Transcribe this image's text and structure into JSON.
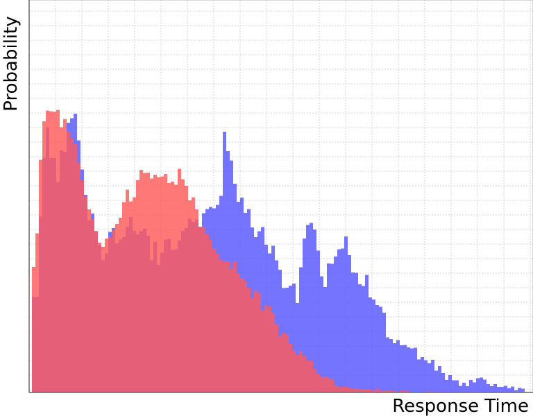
{
  "chart_data": {
    "type": "histogram",
    "title": "",
    "xlabel": "Response Time",
    "ylabel": "Probability",
    "xlim": [
      0,
      1
    ],
    "ylim": [
      0,
      1
    ],
    "grid": true,
    "tick_labels": "none",
    "legend": "none",
    "bin_count": 142,
    "series": [
      {
        "color": "#5555ff",
        "opacity": 0.82,
        "values": [
          0.254,
          0.254,
          0.469,
          0.625,
          0.707,
          0.625,
          0.625,
          0.561,
          0.645,
          0.641,
          0.719,
          0.731,
          0.743,
          0.672,
          0.594,
          0.527,
          0.459,
          0.477,
          0.427,
          0.393,
          0.352,
          0.371,
          0.428,
          0.438,
          0.397,
          0.408,
          0.414,
          0.441,
          0.468,
          0.431,
          0.421,
          0.43,
          0.436,
          0.418,
          0.352,
          0.401,
          0.34,
          0.372,
          0.408,
          0.409,
          0.38,
          0.382,
          0.406,
          0.431,
          0.438,
          0.463,
          0.455,
          0.461,
          0.441,
          0.478,
          0.489,
          0.494,
          0.491,
          0.5,
          0.524,
          0.695,
          0.643,
          0.618,
          0.556,
          0.508,
          0.519,
          0.479,
          0.489,
          0.44,
          0.414,
          0.43,
          0.441,
          0.394,
          0.371,
          0.391,
          0.352,
          0.327,
          0.278,
          0.279,
          0.285,
          0.29,
          0.238,
          0.334,
          0.41,
          0.446,
          0.452,
          0.434,
          0.378,
          0.31,
          0.281,
          0.344,
          0.343,
          0.362,
          0.382,
          0.384,
          0.416,
          0.366,
          0.32,
          0.319,
          0.288,
          0.284,
          0.313,
          0.253,
          0.248,
          0.233,
          0.228,
          0.213,
          0.147,
          0.142,
          0.131,
          0.14,
          0.126,
          0.127,
          0.12,
          0.117,
          0.119,
          0.088,
          0.094,
          0.086,
          0.078,
          0.087,
          0.058,
          0.07,
          0.052,
          0.033,
          0.046,
          0.032,
          0.032,
          0.018,
          0.026,
          0.017,
          0.033,
          0.027,
          0.038,
          0.04,
          0.034,
          0.022,
          0.017,
          0.022,
          0.015,
          0.015,
          0.018,
          0.011,
          0.016,
          0.006,
          0.012,
          0.01
        ]
      },
      {
        "color": "#ff5a5a",
        "opacity": 0.82,
        "values": [
          0.335,
          0.424,
          0.62,
          0.723,
          0.751,
          0.75,
          0.749,
          0.753,
          0.707,
          0.729,
          0.697,
          0.677,
          0.662,
          0.613,
          0.566,
          0.522,
          0.488,
          0.461,
          0.431,
          0.399,
          0.388,
          0.41,
          0.414,
          0.433,
          0.449,
          0.466,
          0.507,
          0.541,
          0.509,
          0.52,
          0.566,
          0.593,
          0.585,
          0.586,
          0.57,
          0.58,
          0.574,
          0.576,
          0.582,
          0.558,
          0.562,
          0.554,
          0.596,
          0.568,
          0.551,
          0.512,
          0.52,
          0.488,
          0.442,
          0.442,
          0.423,
          0.408,
          0.384,
          0.37,
          0.354,
          0.349,
          0.348,
          0.331,
          0.349,
          0.318,
          0.305,
          0.297,
          0.278,
          0.252,
          0.271,
          0.265,
          0.218,
          0.232,
          0.229,
          0.212,
          0.181,
          0.149,
          0.159,
          0.154,
          0.129,
          0.112,
          0.1,
          0.11,
          0.098,
          0.085,
          0.084,
          0.064,
          0.049,
          0.04,
          0.042,
          0.04,
          0.035,
          0.02,
          0.014,
          0.015,
          0.016,
          0.012,
          0.01,
          0.01,
          0.008,
          0.009,
          0.007,
          0.009,
          0.006,
          0.01,
          0.006,
          0.005,
          0.006,
          0.004,
          0.004,
          0.002,
          0.004,
          0.004,
          0.003,
          0.002,
          0.002,
          0.002,
          0.002,
          0.001,
          0.003,
          0.002,
          0.001,
          0.001,
          0.002,
          0.002,
          0.001,
          0.001,
          0.001,
          0.001,
          0.001,
          0.001,
          0.001,
          0.001,
          0.001,
          0.001,
          0.001,
          0.001,
          0.001,
          0.001,
          0.001,
          0.001,
          0.001,
          0.001,
          0.001,
          0.001,
          0.001,
          0.001
        ]
      }
    ]
  }
}
